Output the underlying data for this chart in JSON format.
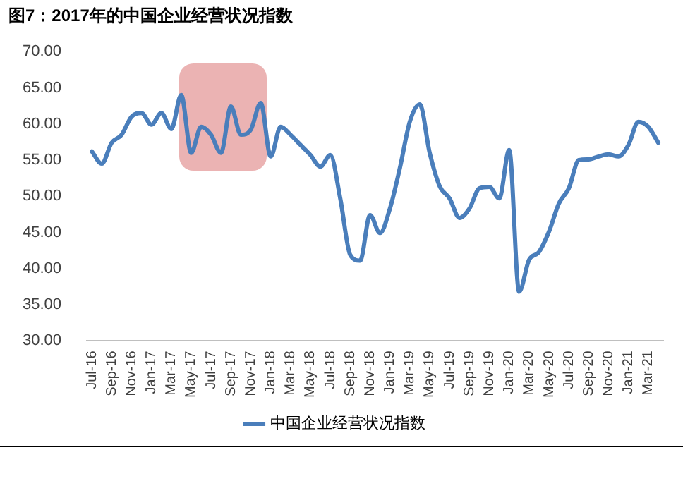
{
  "chart_data": {
    "type": "line",
    "title": "图7：2017年的中国企业经营状况指数",
    "categories": [
      "Jul-16",
      null,
      "Sep-16",
      null,
      "Nov-16",
      null,
      "Jan-17",
      null,
      "Mar-17",
      null,
      "May-17",
      null,
      "Jul-17",
      null,
      "Sep-17",
      null,
      "Nov-17",
      null,
      "Jan-18",
      null,
      "Mar-18",
      null,
      "May-18",
      null,
      "Jul-18",
      null,
      "Sep-18",
      null,
      "Nov-18",
      null,
      "Jan-19",
      null,
      "Mar-19",
      null,
      "May-19",
      null,
      "Jul-19",
      null,
      "Sep-19",
      null,
      "Nov-19",
      null,
      "Jan-20",
      null,
      "Mar-20",
      null,
      "May-20",
      null,
      "Jul-20",
      null,
      "Sep-20",
      null,
      "Nov-20",
      null,
      "Jan-21",
      null,
      "Mar-21",
      null
    ],
    "series": [
      {
        "name": "中国企业经营状况指数",
        "color": "#4a7ebb",
        "values": [
          56.2,
          54.5,
          57.4,
          58.5,
          61.0,
          61.5,
          59.9,
          61.5,
          59.3,
          64.0,
          56.0,
          59.6,
          58.5,
          56.0,
          62.4,
          58.5,
          59.2,
          62.9,
          55.5,
          59.6,
          58.5,
          57.1,
          55.7,
          54.1,
          55.7,
          49.7,
          41.9,
          41.1,
          47.4,
          44.9,
          48.3,
          53.9,
          60.3,
          62.7,
          56.0,
          51.4,
          49.7,
          47.0,
          48.3,
          51.1,
          51.3,
          49.7,
          56.4,
          36.8,
          41.2,
          42.3,
          45.1,
          49.0,
          51.1,
          55.0,
          55.1,
          55.5,
          55.8,
          55.5,
          57.1,
          60.3,
          59.6,
          57.4
        ]
      }
    ],
    "ylim": [
      30,
      70
    ],
    "yticks": [
      {
        "value": 30,
        "label": "30.00"
      },
      {
        "value": 35,
        "label": "35.00"
      },
      {
        "value": 40,
        "label": "40.00"
      },
      {
        "value": 45,
        "label": "45.00"
      },
      {
        "value": 50,
        "label": "50.00"
      },
      {
        "value": 55,
        "label": "55.00"
      },
      {
        "value": 60,
        "label": "60.00"
      },
      {
        "value": 65,
        "label": "65.00"
      },
      {
        "value": 70,
        "label": "70.00"
      }
    ],
    "grid": false,
    "legend": "bottom",
    "marker": "none",
    "line_style": "solid"
  }
}
